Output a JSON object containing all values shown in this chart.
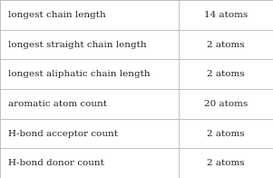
{
  "rows": [
    [
      "longest chain length",
      "14 atoms"
    ],
    [
      "longest straight chain length",
      "2 atoms"
    ],
    [
      "longest aliphatic chain length",
      "2 atoms"
    ],
    [
      "aromatic atom count",
      "20 atoms"
    ],
    [
      "H-bond acceptor count",
      "2 atoms"
    ],
    [
      "H-bond donor count",
      "2 atoms"
    ]
  ],
  "col_split": 0.655,
  "background_color": "#ffffff",
  "border_color": "#c0c0c0",
  "text_color": "#222222",
  "font_size": 7.5,
  "fig_width": 3.01,
  "fig_height": 1.96,
  "dpi": 100
}
